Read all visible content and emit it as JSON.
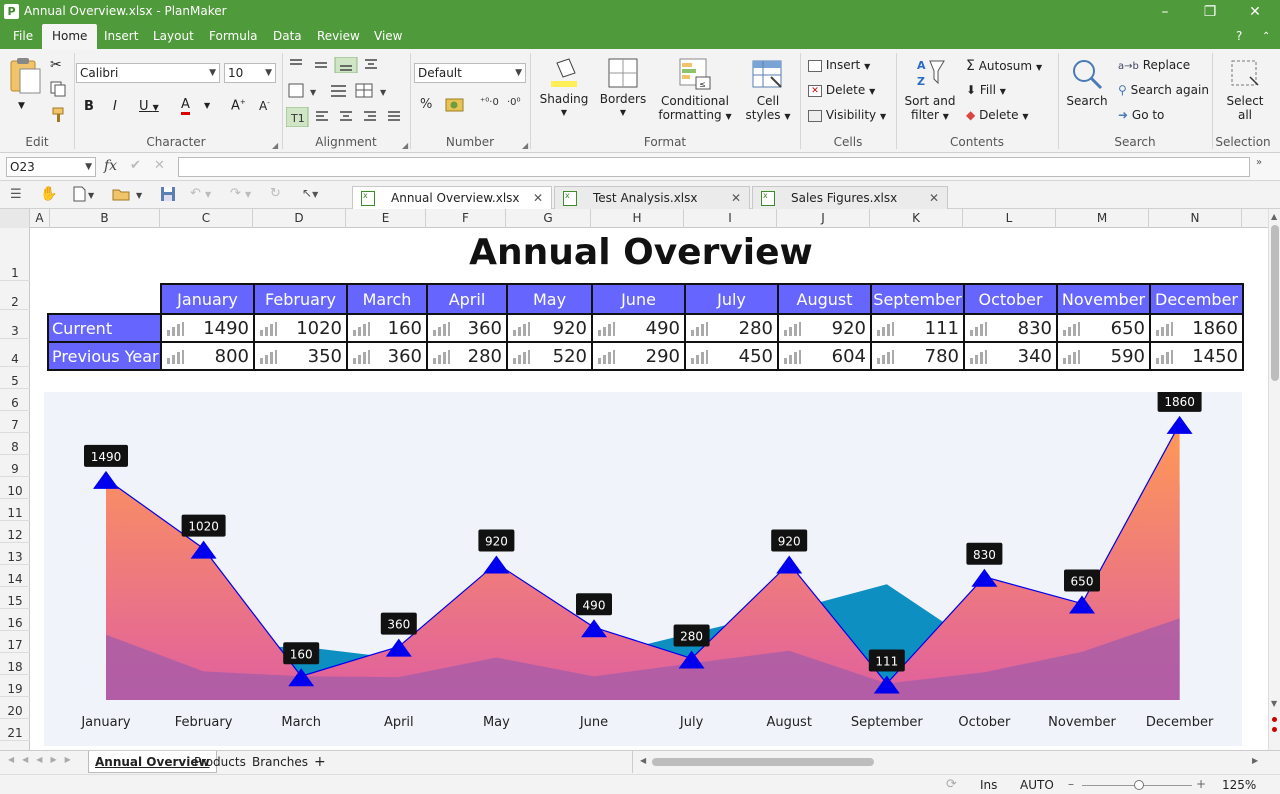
{
  "window": {
    "title": "Annual Overview.xlsx - PlanMaker",
    "app_icon": "P"
  },
  "menu": [
    "File",
    "Home",
    "Insert",
    "Layout",
    "Formula",
    "Data",
    "Review",
    "View"
  ],
  "ribbon": {
    "edit": {
      "label": "Edit"
    },
    "character": {
      "label": "Character",
      "font": "Calibri",
      "size": "10"
    },
    "alignment": {
      "label": "Alignment"
    },
    "number": {
      "label": "Number",
      "format": "Default"
    },
    "format": {
      "label": "Format",
      "shading": "Shading",
      "borders": "Borders",
      "conditional": [
        "Conditional",
        "formatting"
      ],
      "cellstyles": [
        "Cell",
        "styles"
      ]
    },
    "cells": {
      "label": "Cells",
      "insert": "Insert",
      "delete": "Delete",
      "visibility": "Visibility"
    },
    "contents": {
      "label": "Contents",
      "sort": [
        "Sort and",
        "filter"
      ],
      "autosum": "Autosum",
      "fill": "Fill",
      "delete": "Delete"
    },
    "search": {
      "label": "Search",
      "search": "Search",
      "replace": "Replace",
      "search_again": "Search again",
      "goto": "Go to"
    },
    "selection": {
      "label": "Selection",
      "select_all": [
        "Select",
        "all"
      ]
    }
  },
  "formula_bar": {
    "cell_ref": "O23",
    "fx": "fx",
    "content": ""
  },
  "doc_tabs": [
    "Annual Overview.xlsx",
    "Test Analysis.xlsx",
    "Sales Figures.xlsx"
  ],
  "columns": [
    "A",
    "B",
    "C",
    "D",
    "E",
    "F",
    "G",
    "H",
    "I",
    "J",
    "K",
    "L",
    "M",
    "N"
  ],
  "rows": [
    "1",
    "2",
    "3",
    "4",
    "5",
    "6",
    "7",
    "8",
    "9",
    "10",
    "11",
    "12",
    "13",
    "14",
    "15",
    "16",
    "17",
    "18",
    "19",
    "20",
    "21"
  ],
  "sheet": {
    "title": "Annual Overview",
    "months": [
      "January",
      "February",
      "March",
      "April",
      "May",
      "June",
      "July",
      "August",
      "September",
      "October",
      "November",
      "December"
    ],
    "row_current": "Current",
    "row_previous": "Previous Year",
    "current": [
      1490,
      1020,
      160,
      360,
      920,
      490,
      280,
      920,
      111,
      830,
      650,
      1860
    ],
    "previous": [
      800,
      350,
      360,
      280,
      520,
      290,
      450,
      604,
      780,
      340,
      590,
      1450
    ]
  },
  "chart_data": {
    "type": "area",
    "categories": [
      "January",
      "February",
      "March",
      "April",
      "May",
      "June",
      "July",
      "August",
      "September",
      "October",
      "November",
      "December"
    ],
    "series": [
      {
        "name": "Current",
        "values": [
          1490,
          1020,
          160,
          360,
          920,
          490,
          280,
          920,
          111,
          830,
          650,
          1860
        ]
      },
      {
        "name": "Previous Year",
        "values": [
          800,
          350,
          360,
          280,
          520,
          290,
          450,
          604,
          780,
          340,
          590,
          1450
        ]
      }
    ],
    "data_labels": true,
    "colors": {
      "current_top": "#ff9955",
      "current_bottom": "#e0609f",
      "previous": "#0e8fc2",
      "shadow": "#a65da8",
      "marker": "#0000ee"
    }
  },
  "sheet_tabs": [
    "Annual Overview",
    "Products",
    "Branches"
  ],
  "status": {
    "mode": "Ins",
    "calc": "AUTO",
    "zoom": "125%"
  }
}
